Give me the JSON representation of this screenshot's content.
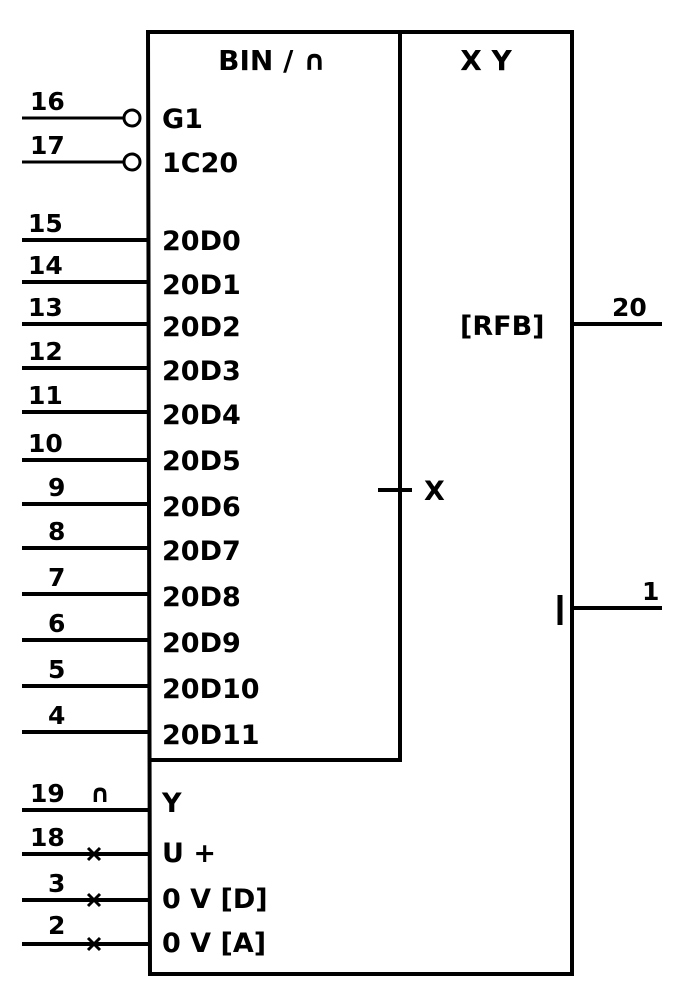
{
  "blocks": {
    "left_header": "BIN / ∩",
    "right_header": "X Y",
    "inner_x_label": "X",
    "output_rfb_label": "[RFB]"
  },
  "input_pins": [
    {
      "pin": "16",
      "label": "G1",
      "marker": "inverter-circle"
    },
    {
      "pin": "17",
      "label": "1C20",
      "marker": "inverter-circle"
    },
    {
      "pin": "15",
      "label": "20D0",
      "marker": "none"
    },
    {
      "pin": "14",
      "label": "20D1",
      "marker": "none"
    },
    {
      "pin": "13",
      "label": "20D2",
      "marker": "none"
    },
    {
      "pin": "12",
      "label": "20D3",
      "marker": "none"
    },
    {
      "pin": "11",
      "label": "20D4",
      "marker": "none"
    },
    {
      "pin": "10",
      "label": "20D5",
      "marker": "none"
    },
    {
      "pin": "9",
      "label": "20D6",
      "marker": "none"
    },
    {
      "pin": "8",
      "label": "20D7",
      "marker": "none"
    },
    {
      "pin": "7",
      "label": "20D8",
      "marker": "none"
    },
    {
      "pin": "6",
      "label": "20D9",
      "marker": "none"
    },
    {
      "pin": "5",
      "label": "20D10",
      "marker": "none"
    },
    {
      "pin": "4",
      "label": "20D11",
      "marker": "none"
    }
  ],
  "lower_pins": [
    {
      "pin": "19",
      "symbol": "∩",
      "label": "Y",
      "marker": "none"
    },
    {
      "pin": "18",
      "symbol": "",
      "label": "U +",
      "marker": "cross"
    },
    {
      "pin": "3",
      "symbol": "",
      "label": "0 V [D]",
      "marker": "cross"
    },
    {
      "pin": "2",
      "symbol": "",
      "label": "0 V [A]",
      "marker": "cross"
    }
  ],
  "output_pins": [
    {
      "pin": "20",
      "label": "[RFB]"
    },
    {
      "pin": "1",
      "label": ""
    }
  ]
}
